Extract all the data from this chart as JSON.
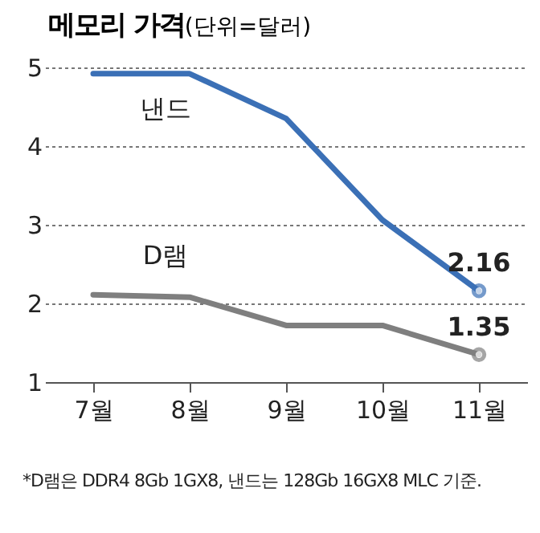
{
  "chart_data": {
    "type": "line",
    "title": "메모리 가격",
    "ylabel": "(단위=달러)",
    "categories": [
      "7월",
      "8월",
      "9월",
      "10월",
      "11월"
    ],
    "series": [
      {
        "name": "낸드",
        "color": "#3b70b6",
        "values": [
          4.92,
          4.92,
          4.35,
          3.06,
          2.16
        ],
        "value_labels": [
          null,
          null,
          null,
          null,
          "2.16"
        ]
      },
      {
        "name": "D램",
        "color": "#7f7f7f",
        "values": [
          2.11,
          2.08,
          1.72,
          1.72,
          1.35
        ],
        "value_labels": [
          null,
          null,
          null,
          null,
          "1.35"
        ]
      }
    ],
    "ylim": [
      1,
      5
    ],
    "yticks": [
      1,
      2,
      3,
      4,
      5
    ],
    "grid": "y",
    "line_style": "solid",
    "annotations": [
      "*D램은 DDR4 8Gb 1GX8, 낸드는 128Gb 16GX8 MLC 기준."
    ]
  }
}
